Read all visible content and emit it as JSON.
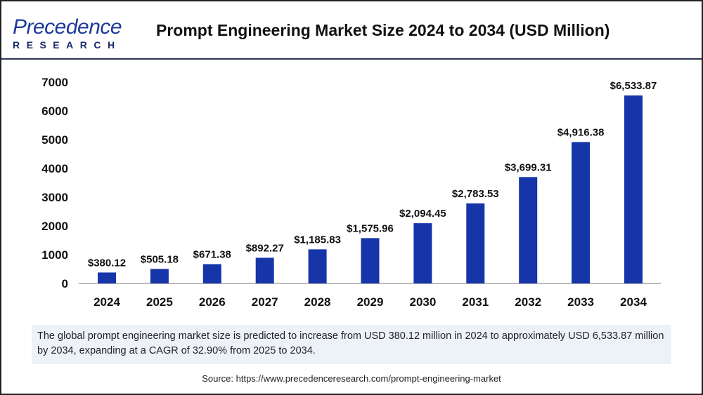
{
  "logo": {
    "line1": "Precedence",
    "line2": "RESEARCH"
  },
  "title": "Prompt Engineering Market Size 2024 to 2034 (USD Million)",
  "chart_data": {
    "type": "bar",
    "title": "Prompt Engineering Market Size 2024 to 2034 (USD Million)",
    "categories": [
      "2024",
      "2025",
      "2026",
      "2027",
      "2028",
      "2029",
      "2030",
      "2031",
      "2032",
      "2033",
      "2034"
    ],
    "values": [
      380.12,
      505.18,
      671.38,
      892.27,
      1185.83,
      1575.96,
      2094.45,
      2783.53,
      3699.31,
      4916.38,
      6533.87
    ],
    "labels": [
      "$380.12",
      "$505.18",
      "$671.38",
      "$892.27",
      "$1,185.83",
      "$1,575.96",
      "$2,094.45",
      "$2,783.53",
      "$3,699.31",
      "$4,916.38",
      "$6,533.87"
    ],
    "yticks": [
      "0",
      "1000",
      "2000",
      "3000",
      "4000",
      "5000",
      "6000",
      "7000"
    ],
    "ylim": [
      0,
      7000
    ],
    "grid": false,
    "bar_color": "#1535a8"
  },
  "summary": "The global prompt engineering market size is predicted to increase from USD 380.12 million in 2024 to approximately USD 6,533.87 million by 2034, expanding at a CAGR of 32.90% from 2025 to 2034.",
  "source": "Source: https://www.precedenceresearch.com/prompt-engineering-market"
}
